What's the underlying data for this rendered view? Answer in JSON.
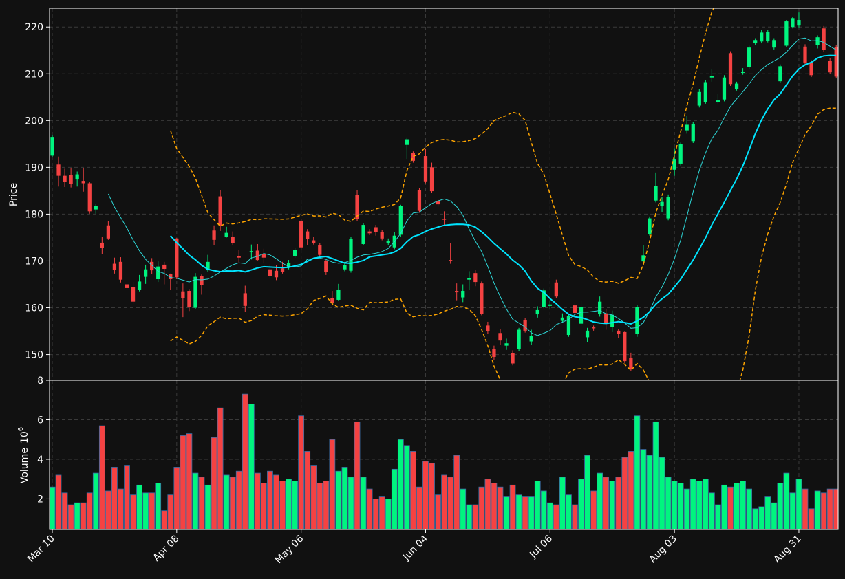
{
  "chart_data": {
    "type": "candlestick",
    "colors": {
      "background": "#111111",
      "up": "#00f57f",
      "down": "#f54242",
      "ma_fast": "#2ed8d8",
      "ma_slow": "#00e5ff",
      "bands": "#ffa500",
      "grid": "#3a3a3a",
      "axis": "#ffffff"
    },
    "price_panel": {
      "ylabel": "Price",
      "ylim": [
        144.5,
        224
      ],
      "yticks": [
        150,
        160,
        170,
        180,
        190,
        200,
        210,
        220
      ]
    },
    "volume_panel": {
      "ylabel": "Volume",
      "yunit": "10",
      "yunit_exp": "6",
      "ylim": [
        0.45,
        8
      ],
      "yticks": [
        2,
        4,
        6,
        8
      ]
    },
    "xaxis": {
      "labels": [
        {
          "label": "Mar 10",
          "index": 0
        },
        {
          "label": "Apr 08",
          "index": 20
        },
        {
          "label": "May 06",
          "index": 40
        },
        {
          "label": "Jun 04",
          "index": 60
        },
        {
          "label": "Jul 06",
          "index": 80
        },
        {
          "label": "Aug 03",
          "index": 100
        },
        {
          "label": "Aug 31",
          "index": 120
        }
      ],
      "count": 127
    },
    "candles": [
      [
        192.5,
        196.5,
        196.9,
        192.2
      ],
      [
        190.6,
        188.2,
        192.3,
        185.9
      ],
      [
        188.2,
        186.9,
        189.7,
        185.8
      ],
      [
        188.3,
        186.5,
        189.8,
        185.7
      ],
      [
        187.4,
        188.5,
        189.1,
        185.9
      ],
      [
        187.1,
        186.6,
        189.8,
        184.8
      ],
      [
        186.6,
        180.6,
        186.9,
        180.1
      ],
      [
        181.0,
        181.8,
        182.1,
        180.1
      ],
      [
        173.9,
        172.8,
        175.2,
        171.5
      ],
      [
        177.6,
        174.8,
        178.5,
        174.5
      ],
      [
        169.4,
        168.1,
        170.7,
        167.3
      ],
      [
        169.8,
        166.0,
        170.8,
        165.4
      ],
      [
        165.0,
        164.2,
        168.0,
        163.5
      ],
      [
        164.4,
        161.3,
        165.5,
        160.8
      ],
      [
        163.9,
        165.6,
        167.0,
        163.5
      ],
      [
        166.6,
        168.2,
        169.2,
        165.1
      ],
      [
        169.8,
        168.0,
        170.6,
        167.2
      ],
      [
        166.1,
        168.8,
        169.9,
        165.5
      ],
      [
        169.2,
        168.3,
        169.8,
        165.0
      ],
      [
        167.2,
        166.1,
        167.3,
        163.8
      ],
      [
        174.8,
        166.5,
        174.9,
        166.1
      ],
      [
        163.5,
        162.0,
        165.2,
        158.0
      ],
      [
        163.6,
        160.2,
        164.0,
        159.3
      ],
      [
        160.0,
        166.6,
        167.4,
        159.7
      ],
      [
        166.7,
        164.8,
        167.1,
        162.8
      ],
      [
        168.0,
        169.8,
        171.3,
        167.6
      ],
      [
        176.5,
        174.5,
        177.6,
        173.4
      ],
      [
        183.8,
        177.6,
        185.1,
        176.4
      ],
      [
        175.1,
        176.0,
        177.3,
        175.0
      ],
      [
        175.2,
        173.8,
        176.3,
        173.4
      ],
      [
        171.0,
        170.7,
        172.4,
        169.7
      ],
      [
        163.1,
        160.4,
        164.7,
        159.1
      ],
      [
        171.9,
        172.1,
        173.5,
        170.3
      ],
      [
        172.2,
        170.2,
        173.6,
        170.1
      ],
      [
        171.4,
        170.7,
        172.6,
        169.6
      ],
      [
        168.2,
        166.8,
        169.3,
        166.2
      ],
      [
        167.9,
        166.5,
        169.1,
        165.9
      ],
      [
        168.4,
        167.7,
        169.8,
        167.3
      ],
      [
        168.6,
        169.5,
        170.2,
        168.2
      ],
      [
        171.1,
        172.4,
        172.8,
        170.7
      ],
      [
        178.6,
        172.9,
        179.0,
        172.3
      ],
      [
        176.3,
        174.7,
        176.8,
        173.4
      ],
      [
        174.4,
        173.8,
        175.2,
        173.5
      ],
      [
        173.3,
        171.3,
        173.8,
        171.0
      ],
      [
        170.0,
        167.6,
        170.2,
        167.0
      ],
      [
        162.1,
        161.1,
        163.6,
        160.5
      ],
      [
        161.7,
        163.9,
        165.1,
        161.4
      ],
      [
        168.2,
        169.1,
        169.8,
        167.8
      ],
      [
        167.9,
        174.7,
        175.1,
        167.5
      ],
      [
        184.1,
        178.9,
        185.2,
        178.5
      ],
      [
        173.6,
        177.7,
        178.0,
        173.3
      ],
      [
        176.3,
        175.9,
        176.8,
        175.5
      ],
      [
        177.2,
        176.2,
        177.7,
        175.4
      ],
      [
        176.2,
        174.8,
        176.6,
        174.4
      ],
      [
        173.8,
        174.3,
        174.8,
        173.4
      ],
      [
        172.9,
        175.4,
        176.2,
        172.5
      ],
      [
        175.6,
        181.8,
        182.0,
        175.2
      ],
      [
        194.8,
        196.0,
        196.4,
        191.8
      ],
      [
        193.0,
        191.4,
        193.4,
        191.0
      ],
      [
        185.1,
        180.7,
        185.5,
        180.3
      ],
      [
        192.4,
        187.0,
        193.9,
        186.6
      ],
      [
        190.0,
        184.9,
        191.0,
        184.6
      ],
      [
        182.7,
        182.1,
        183.1,
        181.6
      ],
      [
        179.0,
        178.8,
        180.6,
        177.5
      ],
      [
        170.2,
        170.0,
        173.8,
        169.4
      ],
      [
        163.6,
        163.3,
        165.2,
        161.6
      ],
      [
        162.2,
        163.6,
        165.0,
        161.2
      ],
      [
        166.0,
        166.3,
        167.8,
        163.8
      ],
      [
        167.4,
        165.5,
        168.1,
        164.6
      ],
      [
        165.2,
        158.7,
        165.6,
        158.4
      ],
      [
        156.2,
        155.0,
        157.0,
        154.4
      ],
      [
        151.2,
        149.5,
        151.9,
        148.9
      ],
      [
        154.6,
        153.0,
        155.4,
        152.0
      ],
      [
        151.9,
        152.4,
        153.4,
        151.0
      ],
      [
        150.3,
        148.1,
        150.9,
        147.7
      ],
      [
        151.2,
        155.3,
        155.7,
        150.8
      ],
      [
        157.3,
        155.1,
        157.8,
        154.7
      ],
      [
        152.8,
        154.0,
        155.3,
        152.1
      ],
      [
        158.6,
        159.5,
        160.3,
        157.9
      ],
      [
        160.2,
        163.7,
        164.1,
        159.9
      ],
      [
        160.4,
        160.7,
        161.6,
        159.6
      ],
      [
        165.4,
        162.4,
        166.0,
        162.0
      ],
      [
        157.2,
        157.9,
        158.8,
        156.9
      ],
      [
        154.2,
        158.3,
        158.7,
        153.8
      ],
      [
        160.5,
        158.9,
        161.2,
        158.6
      ],
      [
        156.6,
        160.2,
        161.5,
        156.2
      ],
      [
        153.7,
        155.1,
        155.7,
        152.6
      ],
      [
        155.8,
        155.6,
        156.2,
        155.1
      ],
      [
        158.7,
        161.3,
        162.4,
        158.1
      ],
      [
        158.8,
        156.7,
        159.7,
        155.3
      ],
      [
        155.9,
        158.5,
        159.4,
        154.8
      ],
      [
        155.1,
        154.4,
        155.5,
        153.5
      ],
      [
        154.8,
        148.6,
        154.9,
        148.2
      ],
      [
        149.3,
        146.9,
        150.4,
        146.5
      ],
      [
        154.4,
        160.1,
        160.6,
        153.8
      ],
      [
        169.9,
        171.2,
        173.4,
        169.5
      ],
      [
        175.8,
        179.1,
        179.5,
        175.4
      ],
      [
        182.9,
        186.0,
        188.9,
        182.5
      ],
      [
        181.8,
        182.6,
        183.6,
        180.5
      ],
      [
        179.1,
        183.6,
        184.2,
        178.7
      ],
      [
        189.5,
        191.8,
        194.1,
        188.2
      ],
      [
        190.8,
        194.9,
        195.3,
        190.4
      ],
      [
        197.9,
        199.1,
        201.0,
        197.2
      ],
      [
        195.6,
        199.3,
        199.7,
        195.2
      ],
      [
        203.2,
        206.1,
        206.8,
        202.8
      ],
      [
        204.0,
        208.2,
        208.7,
        203.6
      ],
      [
        209.2,
        209.5,
        211.0,
        208.3
      ],
      [
        204.0,
        204.3,
        205.7,
        203.6
      ],
      [
        204.5,
        209.2,
        209.7,
        204.1
      ],
      [
        214.4,
        207.8,
        214.8,
        207.4
      ],
      [
        206.8,
        207.9,
        208.3,
        206.4
      ],
      [
        210.2,
        210.4,
        211.2,
        209.8
      ],
      [
        211.4,
        215.6,
        216.0,
        211.0
      ],
      [
        216.5,
        217.2,
        217.6,
        216.2
      ],
      [
        216.9,
        218.8,
        219.3,
        216.5
      ],
      [
        217.0,
        218.9,
        219.4,
        216.7
      ],
      [
        215.6,
        217.2,
        217.6,
        215.2
      ],
      [
        208.4,
        211.6,
        212.0,
        208.0
      ],
      [
        216.0,
        221.2,
        221.5,
        215.7
      ],
      [
        220.0,
        221.9,
        222.2,
        219.7
      ],
      [
        220.3,
        221.5,
        223.1,
        219.9
      ],
      [
        215.8,
        212.4,
        216.3,
        212.0
      ],
      [
        212.4,
        209.7,
        212.9,
        209.3
      ],
      [
        216.2,
        217.8,
        218.2,
        215.4
      ],
      [
        219.7,
        215.1,
        220.2,
        214.7
      ],
      [
        212.7,
        210.3,
        213.3,
        210.0
      ],
      [
        215.7,
        209.4,
        216.2,
        209.0
      ]
    ],
    "volume": [
      2.6,
      3.2,
      2.3,
      1.7,
      1.8,
      1.8,
      2.3,
      3.3,
      5.7,
      2.4,
      3.6,
      2.5,
      3.7,
      2.2,
      2.7,
      2.3,
      2.3,
      2.8,
      1.4,
      2.2,
      3.6,
      5.2,
      5.3,
      3.3,
      3.1,
      2.7,
      5.1,
      6.6,
      3.2,
      3.1,
      3.4,
      7.3,
      6.8,
      3.3,
      2.8,
      3.4,
      3.2,
      2.9,
      3.0,
      2.9,
      6.2,
      4.4,
      3.7,
      2.8,
      2.9,
      5.0,
      3.4,
      3.6,
      3.1,
      5.9,
      3.1,
      2.5,
      2.0,
      2.1,
      2.0,
      3.5,
      5.0,
      4.7,
      4.4,
      2.6,
      3.9,
      3.8,
      2.2,
      3.2,
      3.1,
      4.2,
      2.5,
      1.7,
      1.7,
      2.6,
      3.0,
      2.8,
      2.6,
      2.1,
      2.7,
      2.2,
      2.1,
      2.1,
      2.9,
      2.4,
      1.8,
      1.7,
      3.1,
      2.2,
      1.7,
      3.0,
      4.2,
      2.4,
      3.3,
      3.1,
      2.9,
      3.1,
      4.1,
      4.4,
      6.2,
      4.5,
      4.2,
      5.9,
      4.1,
      3.1,
      2.9,
      2.8,
      2.5,
      3.0,
      2.9,
      3.0,
      2.3,
      1.7,
      2.7,
      2.6,
      2.8,
      2.9,
      2.5,
      1.5,
      1.6,
      2.1,
      1.8,
      2.8,
      3.3,
      2.3,
      3.0,
      2.5,
      1.5,
      2.4,
      2.3,
      2.5,
      2.5
    ],
    "ma_fast_window": 10,
    "ma_slow_window": 20,
    "bands_window": 20,
    "bands_k": 2.2
  }
}
